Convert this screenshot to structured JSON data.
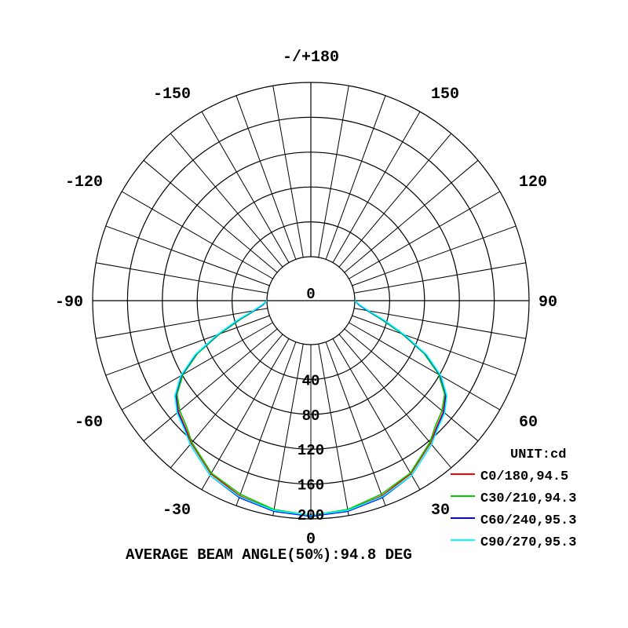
{
  "chart_data": {
    "type": "polar",
    "title": "",
    "unit_label": "UNIT:cd",
    "footer": "AVERAGE BEAM ANGLE(50%):94.8 DEG",
    "angle_labels": [
      {
        "angle": 180,
        "text": "-/+180"
      },
      {
        "angle": 150,
        "text": "150"
      },
      {
        "angle": -150,
        "text": "-150"
      },
      {
        "angle": 120,
        "text": "120"
      },
      {
        "angle": -120,
        "text": "-120"
      },
      {
        "angle": 90,
        "text": "90"
      },
      {
        "angle": -90,
        "text": "-90"
      },
      {
        "angle": 60,
        "text": "60"
      },
      {
        "angle": -60,
        "text": "-60"
      },
      {
        "angle": 30,
        "text": "30"
      },
      {
        "angle": -30,
        "text": "-30"
      },
      {
        "angle": 0,
        "text": "0"
      }
    ],
    "radial_ticks": [
      "0",
      "40",
      "80",
      "120",
      "160",
      "200"
    ],
    "rlim": [
      0,
      200
    ],
    "grid": true,
    "legend_position": "bottom-right",
    "series": [
      {
        "name": "C0/180,94.5",
        "color": "#ff0000",
        "theta": [
          0,
          10,
          20,
          30,
          40,
          45,
          50,
          55,
          60,
          65,
          70,
          75,
          80,
          85,
          90
        ],
        "r": [
          197,
          194,
          188,
          179,
          163,
          154,
          148,
          138,
          120,
          94,
          62,
          35,
          16,
          5,
          0
        ]
      },
      {
        "name": "C30/210,94.3",
        "color": "#00cc00",
        "theta": [
          0,
          10,
          20,
          30,
          40,
          45,
          50,
          55,
          60,
          65,
          70,
          75,
          80,
          85,
          90
        ],
        "r": [
          196,
          193,
          186,
          178,
          162,
          152,
          146,
          137,
          119,
          93,
          61,
          34,
          15,
          5,
          0
        ]
      },
      {
        "name": "C60/240,95.3",
        "color": "#0000ff",
        "theta": [
          0,
          10,
          20,
          30,
          40,
          45,
          50,
          55,
          60,
          65,
          70,
          75,
          80,
          85,
          90
        ],
        "r": [
          197,
          195,
          190,
          181,
          165,
          155,
          149,
          139,
          121,
          95,
          63,
          36,
          16,
          5,
          0
        ]
      },
      {
        "name": "C90/270,95.3",
        "color": "#00ffff",
        "theta": [
          0,
          10,
          20,
          30,
          40,
          45,
          50,
          55,
          60,
          65,
          70,
          75,
          80,
          85,
          90
        ],
        "r": [
          196,
          194,
          189,
          181,
          165,
          156,
          150,
          140,
          122,
          96,
          64,
          37,
          17,
          6,
          0
        ]
      }
    ]
  }
}
